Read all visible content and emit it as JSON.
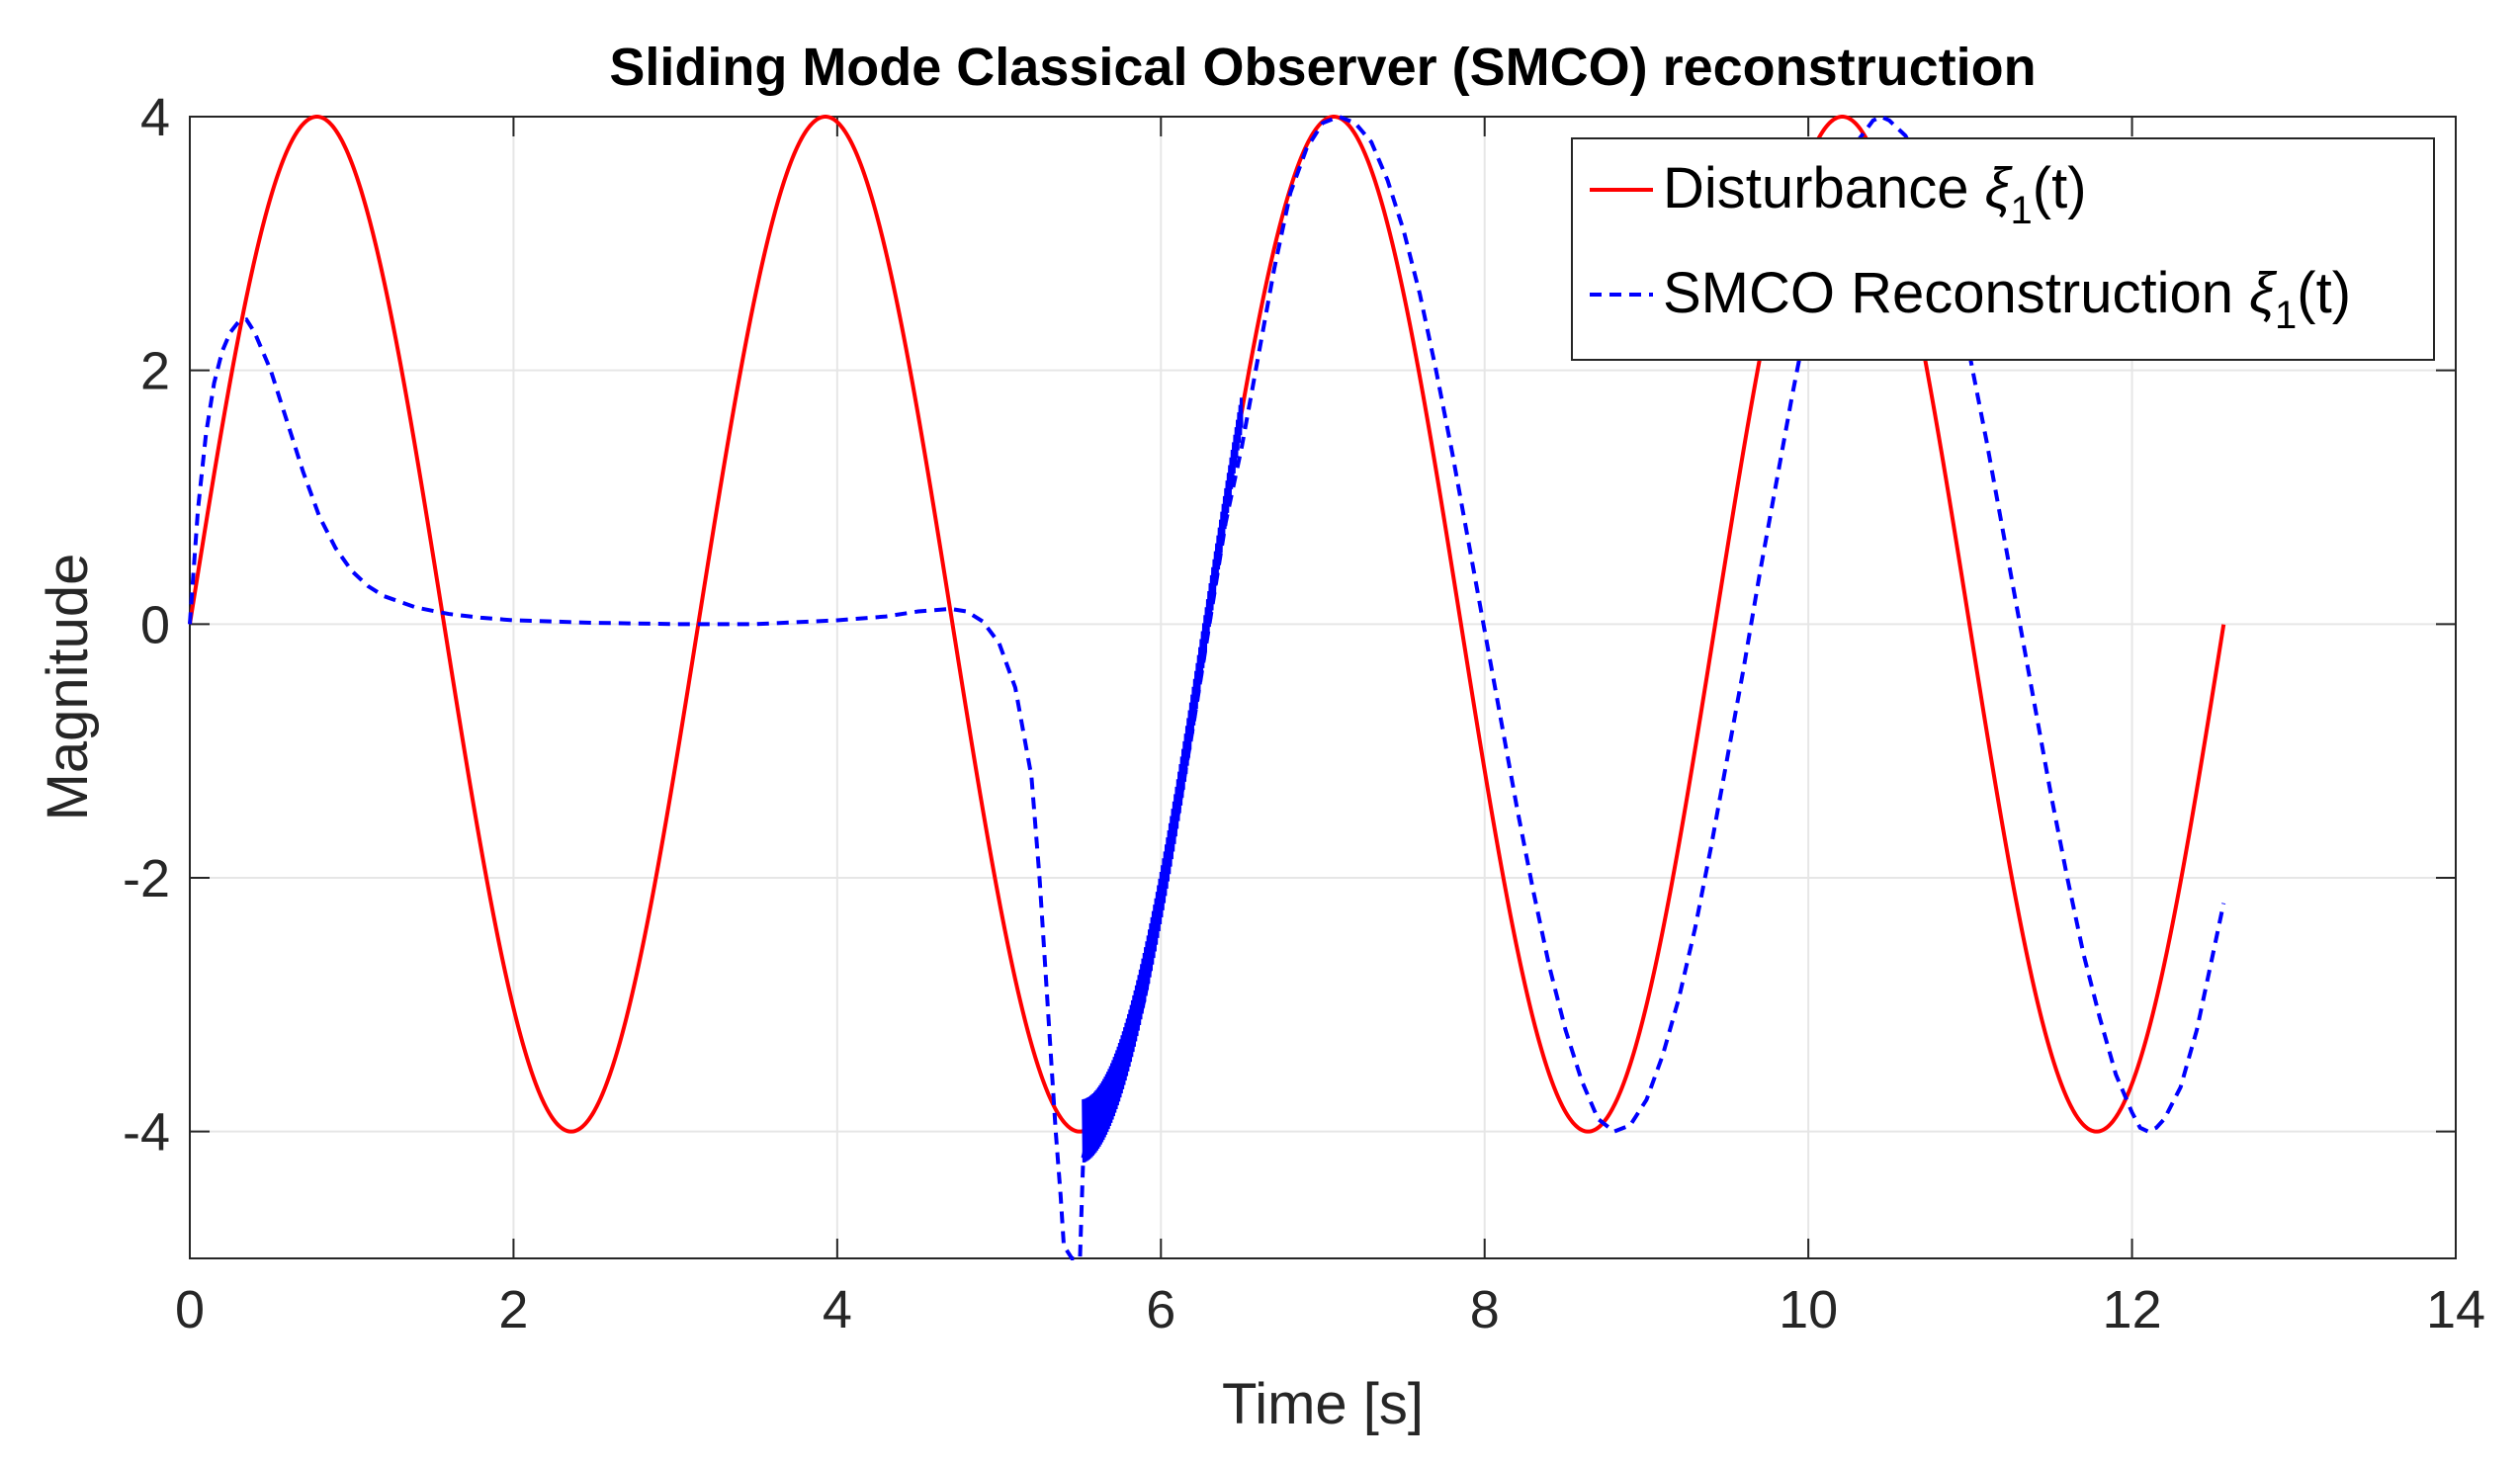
{
  "chart_data": {
    "type": "line",
    "title": "Sliding Mode Classical Observer (SMCO) reconstruction",
    "xlabel": "Time [s]",
    "ylabel": "Magnitude",
    "xlim": [
      0,
      14
    ],
    "ylim": [
      -5,
      4
    ],
    "xticks": [
      0,
      2,
      4,
      6,
      8,
      10,
      12,
      14
    ],
    "yticks": [
      -4,
      -2,
      0,
      2,
      4
    ],
    "xtick_labels": [
      "0",
      "2",
      "4",
      "6",
      "8",
      "10",
      "12",
      "14"
    ],
    "ytick_labels": [
      "-4",
      "-2",
      "0",
      "2",
      "4"
    ],
    "grid": true,
    "legend_location": "top-right",
    "series": [
      {
        "name": "Disturbance ξ1(t)",
        "legend_label_prefix": "Disturbance ",
        "legend_symbol": "ξ",
        "legend_subscript": "1",
        "legend_suffix": "(t)",
        "color": "#ff0000",
        "style": "solid",
        "formula": "4*sin(2*t)",
        "x_start": 0,
        "x_end": 12.566
      },
      {
        "name": "SMCO Reconstruction ξ1(t)",
        "legend_label_prefix": "SMCO Reconstruction ",
        "legend_symbol": "ξ",
        "legend_subscript": "1",
        "legend_suffix": "(t)",
        "color": "#0000ff",
        "style": "dashed",
        "x_end": 12.566,
        "points": [
          [
            0,
            0
          ],
          [
            0.05,
            0.9
          ],
          [
            0.1,
            1.5
          ],
          [
            0.15,
            1.9
          ],
          [
            0.2,
            2.15
          ],
          [
            0.25,
            2.3
          ],
          [
            0.3,
            2.38
          ],
          [
            0.35,
            2.4
          ],
          [
            0.4,
            2.3
          ],
          [
            0.5,
            2.0
          ],
          [
            0.6,
            1.6
          ],
          [
            0.7,
            1.2
          ],
          [
            0.8,
            0.85
          ],
          [
            0.9,
            0.6
          ],
          [
            1.0,
            0.42
          ],
          [
            1.1,
            0.3
          ],
          [
            1.2,
            0.22
          ],
          [
            1.4,
            0.13
          ],
          [
            1.6,
            0.08
          ],
          [
            1.8,
            0.05
          ],
          [
            2.0,
            0.03
          ],
          [
            2.5,
            0.01
          ],
          [
            3.0,
            0.0
          ],
          [
            3.5,
            0.0
          ],
          [
            4.0,
            0.03
          ],
          [
            4.3,
            0.06
          ],
          [
            4.5,
            0.1
          ],
          [
            4.7,
            0.12
          ],
          [
            4.8,
            0.1
          ],
          [
            4.9,
            0.02
          ],
          [
            5.0,
            -0.15
          ],
          [
            5.1,
            -0.5
          ],
          [
            5.2,
            -1.2
          ],
          [
            5.25,
            -2.0
          ],
          [
            5.3,
            -3.0
          ],
          [
            5.35,
            -4.0
          ],
          [
            5.38,
            -4.5
          ],
          [
            5.4,
            -4.9
          ],
          [
            5.45,
            -5.0
          ],
          [
            5.5,
            -5.0
          ],
          [
            5.52,
            -4.2
          ],
          [
            5.55,
            -4.05
          ],
          [
            5.6,
            -3.95
          ],
          [
            5.7,
            -3.8
          ],
          [
            5.8,
            -3.45
          ],
          [
            5.9,
            -2.95
          ],
          [
            6.0,
            -2.25
          ],
          [
            6.1,
            -1.55
          ],
          [
            6.2,
            -0.8
          ],
          [
            6.3,
            0.0
          ],
          [
            6.4,
            0.8
          ],
          [
            6.5,
            1.4
          ],
          [
            6.6,
            2.1
          ],
          [
            6.7,
            2.8
          ],
          [
            6.8,
            3.4
          ],
          [
            6.9,
            3.75
          ],
          [
            7.0,
            3.95
          ],
          [
            7.1,
            4.0
          ],
          [
            7.2,
            3.95
          ],
          [
            7.3,
            3.8
          ],
          [
            7.4,
            3.5
          ],
          [
            7.5,
            3.1
          ],
          [
            7.6,
            2.6
          ],
          [
            7.7,
            2.0
          ],
          [
            7.8,
            1.35
          ],
          [
            7.9,
            0.65
          ],
          [
            8.0,
            -0.05
          ],
          [
            8.1,
            -0.75
          ],
          [
            8.2,
            -1.45
          ],
          [
            8.3,
            -2.1
          ],
          [
            8.4,
            -2.7
          ],
          [
            8.5,
            -3.2
          ],
          [
            8.6,
            -3.6
          ],
          [
            8.7,
            -3.9
          ],
          [
            8.8,
            -4.0
          ],
          [
            8.9,
            -3.95
          ],
          [
            9.0,
            -3.75
          ],
          [
            9.1,
            -3.4
          ],
          [
            9.2,
            -2.95
          ],
          [
            9.3,
            -2.4
          ],
          [
            9.4,
            -1.75
          ],
          [
            9.5,
            -1.05
          ],
          [
            9.6,
            -0.35
          ],
          [
            9.7,
            0.4
          ],
          [
            9.8,
            1.1
          ],
          [
            9.9,
            1.8
          ],
          [
            10.0,
            2.45
          ],
          [
            10.1,
            3.0
          ],
          [
            10.2,
            3.5
          ],
          [
            10.3,
            3.8
          ],
          [
            10.4,
            3.97
          ],
          [
            10.45,
            4.0
          ],
          [
            10.5,
            3.97
          ],
          [
            10.6,
            3.85
          ],
          [
            10.7,
            3.6
          ],
          [
            10.8,
            3.2
          ],
          [
            10.9,
            2.7
          ],
          [
            11.0,
            2.1
          ],
          [
            11.1,
            1.45
          ],
          [
            11.2,
            0.75
          ],
          [
            11.3,
            0.05
          ],
          [
            11.4,
            -0.65
          ],
          [
            11.5,
            -1.35
          ],
          [
            11.6,
            -2.0
          ],
          [
            11.7,
            -2.6
          ],
          [
            11.8,
            -3.1
          ],
          [
            11.9,
            -3.55
          ],
          [
            12.0,
            -3.85
          ],
          [
            12.05,
            -3.97
          ],
          [
            12.1,
            -4.0
          ],
          [
            12.15,
            -3.97
          ],
          [
            12.2,
            -3.9
          ],
          [
            12.3,
            -3.65
          ],
          [
            12.4,
            -3.2
          ],
          [
            12.5,
            -2.6
          ],
          [
            12.566,
            -2.2
          ]
        ]
      }
    ]
  }
}
